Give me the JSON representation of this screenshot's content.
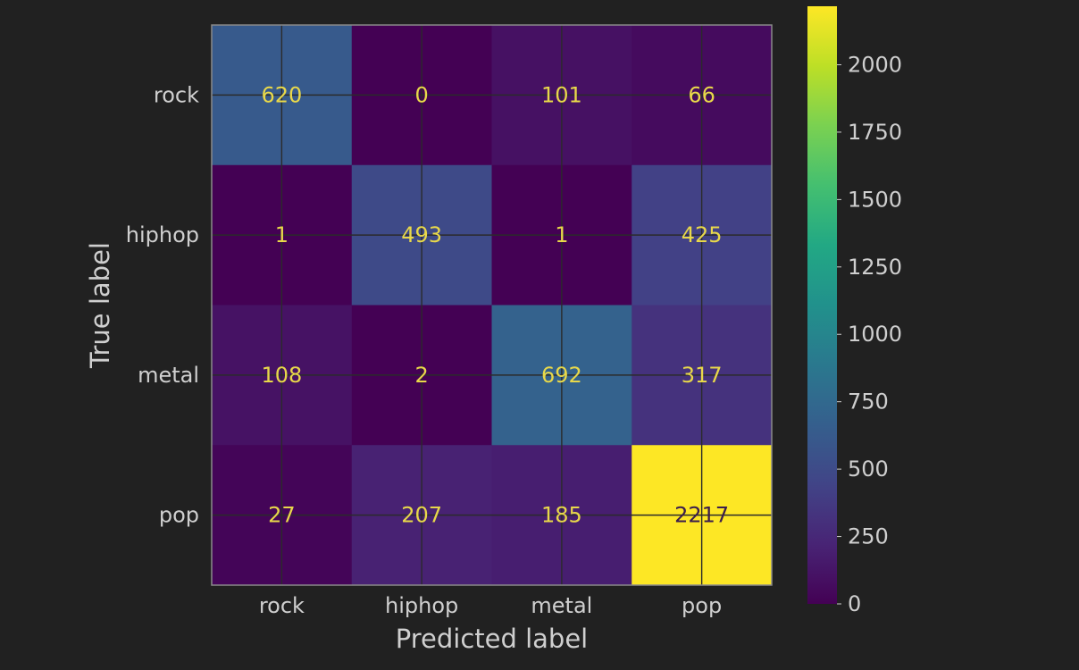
{
  "chart_data": {
    "type": "heatmap",
    "title": "",
    "xlabel": "Predicted label",
    "ylabel": "True label",
    "x_categories": [
      "rock",
      "hiphop",
      "metal",
      "pop"
    ],
    "y_categories": [
      "rock",
      "hiphop",
      "metal",
      "pop"
    ],
    "matrix": [
      [
        620,
        0,
        101,
        66
      ],
      [
        1,
        493,
        1,
        425
      ],
      [
        108,
        2,
        692,
        317
      ],
      [
        27,
        207,
        185,
        2217
      ]
    ],
    "colormap": "viridis",
    "color_range": [
      0,
      2217
    ],
    "colorbar_ticks": [
      0,
      250,
      500,
      750,
      1000,
      1250,
      1500,
      1750,
      2000
    ],
    "grid": true,
    "colors": {
      "background": "#212121",
      "text": "#cfcfcf",
      "grid": "#2b2b2b",
      "frame": "#8a8a8a",
      "annotation_light": "#e8d84a",
      "annotation_dark": "#3b1d4d"
    }
  }
}
